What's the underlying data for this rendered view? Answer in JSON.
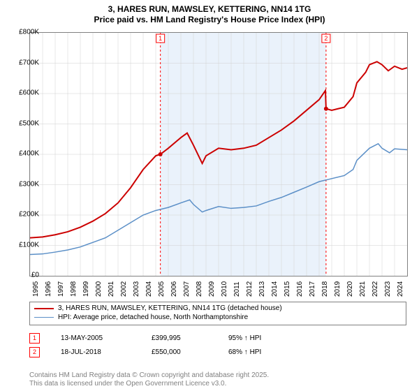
{
  "title_line1": "3, HARES RUN, MAWSLEY, KETTERING, NN14 1TG",
  "title_line2": "Price paid vs. HM Land Registry's House Price Index (HPI)",
  "chart": {
    "type": "line",
    "background_color": "#ffffff",
    "grid_color": "#d0d0d0",
    "border_color": "#808080",
    "x_start_year": 1995,
    "x_end_year": 2025,
    "x_tick_years": [
      1995,
      1996,
      1997,
      1998,
      1999,
      2000,
      2001,
      2002,
      2003,
      2004,
      2005,
      2006,
      2007,
      2008,
      2009,
      2010,
      2011,
      2012,
      2013,
      2014,
      2015,
      2016,
      2017,
      2018,
      2019,
      2020,
      2021,
      2022,
      2023,
      2024
    ],
    "y_min": 0,
    "y_max": 800000,
    "y_tick_step": 100000,
    "y_tick_labels": [
      "£0",
      "£100K",
      "£200K",
      "£300K",
      "£400K",
      "£500K",
      "£600K",
      "£700K",
      "£800K"
    ],
    "shaded_band": {
      "from_year": 2005.37,
      "to_year": 2018.55,
      "fill": "#eaf2fb"
    },
    "sale_markers": [
      {
        "n": "1",
        "year": 2005.37,
        "value": 399995,
        "dash_color": "#ff0000"
      },
      {
        "n": "2",
        "year": 2018.55,
        "value": 550000,
        "dash_color": "#ff0000"
      }
    ],
    "series": [
      {
        "name": "price_paid",
        "label": "3, HARES RUN, MAWSLEY, KETTERING, NN14 1TG (detached house)",
        "color": "#cc0000",
        "line_width": 2,
        "points": [
          [
            1995,
            125000
          ],
          [
            1996,
            128000
          ],
          [
            1997,
            135000
          ],
          [
            1998,
            145000
          ],
          [
            1999,
            160000
          ],
          [
            2000,
            180000
          ],
          [
            2001,
            205000
          ],
          [
            2002,
            240000
          ],
          [
            2003,
            290000
          ],
          [
            2004,
            350000
          ],
          [
            2005,
            395000
          ],
          [
            2005.37,
            399995
          ],
          [
            2006,
            420000
          ],
          [
            2007,
            455000
          ],
          [
            2007.5,
            470000
          ],
          [
            2008,
            430000
          ],
          [
            2008.7,
            370000
          ],
          [
            2009,
            395000
          ],
          [
            2010,
            420000
          ],
          [
            2011,
            415000
          ],
          [
            2012,
            420000
          ],
          [
            2013,
            430000
          ],
          [
            2014,
            455000
          ],
          [
            2015,
            480000
          ],
          [
            2016,
            510000
          ],
          [
            2017,
            545000
          ],
          [
            2018,
            580000
          ],
          [
            2018.5,
            610000
          ],
          [
            2018.55,
            550000
          ],
          [
            2019,
            545000
          ],
          [
            2019.5,
            550000
          ],
          [
            2020,
            555000
          ],
          [
            2020.7,
            590000
          ],
          [
            2021,
            635000
          ],
          [
            2021.7,
            670000
          ],
          [
            2022,
            695000
          ],
          [
            2022.6,
            705000
          ],
          [
            2023,
            695000
          ],
          [
            2023.5,
            675000
          ],
          [
            2024,
            690000
          ],
          [
            2024.6,
            680000
          ],
          [
            2025,
            685000
          ]
        ]
      },
      {
        "name": "hpi",
        "label": "HPI: Average price, detached house, North Northamptonshire",
        "color": "#5b8fc7",
        "line_width": 1.5,
        "points": [
          [
            1995,
            70000
          ],
          [
            1996,
            72000
          ],
          [
            1997,
            78000
          ],
          [
            1998,
            85000
          ],
          [
            1999,
            95000
          ],
          [
            2000,
            110000
          ],
          [
            2001,
            125000
          ],
          [
            2002,
            150000
          ],
          [
            2003,
            175000
          ],
          [
            2004,
            200000
          ],
          [
            2005,
            215000
          ],
          [
            2006,
            225000
          ],
          [
            2007,
            240000
          ],
          [
            2007.7,
            250000
          ],
          [
            2008,
            235000
          ],
          [
            2008.7,
            210000
          ],
          [
            2009,
            215000
          ],
          [
            2010,
            228000
          ],
          [
            2011,
            222000
          ],
          [
            2012,
            225000
          ],
          [
            2013,
            230000
          ],
          [
            2014,
            245000
          ],
          [
            2015,
            258000
          ],
          [
            2016,
            275000
          ],
          [
            2017,
            292000
          ],
          [
            2018,
            310000
          ],
          [
            2019,
            320000
          ],
          [
            2020,
            330000
          ],
          [
            2020.7,
            350000
          ],
          [
            2021,
            380000
          ],
          [
            2022,
            420000
          ],
          [
            2022.7,
            435000
          ],
          [
            2023,
            420000
          ],
          [
            2023.6,
            405000
          ],
          [
            2024,
            418000
          ],
          [
            2025,
            415000
          ]
        ]
      }
    ]
  },
  "legend": {
    "font_size": 10,
    "items": [
      {
        "color": "#cc0000",
        "width": 2,
        "label": "3, HARES RUN, MAWSLEY, KETTERING, NN14 1TG (detached house)"
      },
      {
        "color": "#5b8fc7",
        "width": 1.5,
        "label": "HPI: Average price, detached house, North Northamptonshire"
      }
    ]
  },
  "sales": [
    {
      "n": "1",
      "date": "13-MAY-2005",
      "price": "£399,995",
      "pct": "95% ↑ HPI"
    },
    {
      "n": "2",
      "date": "18-JUL-2018",
      "price": "£550,000",
      "pct": "68% ↑ HPI"
    }
  ],
  "footer_line1": "Contains HM Land Registry data © Crown copyright and database right 2025.",
  "footer_line2": "This data is licensed under the Open Government Licence v3.0."
}
